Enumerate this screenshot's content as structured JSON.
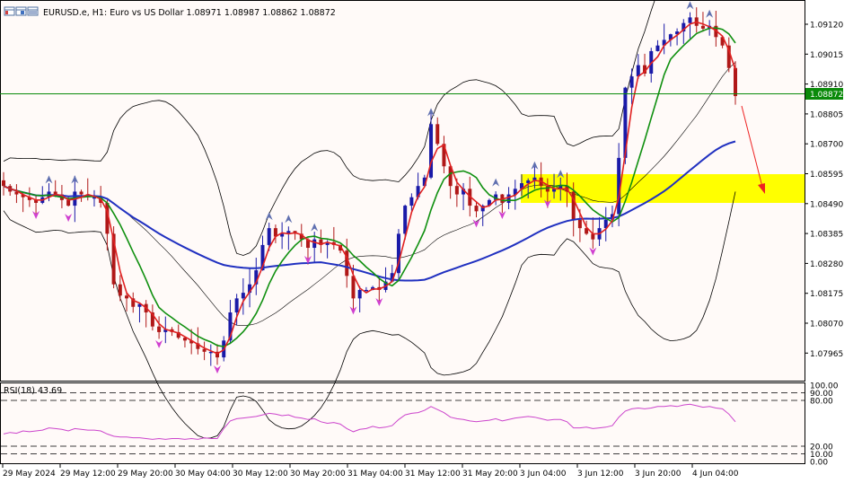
{
  "header": {
    "symbol": "EURUSD.e",
    "timeframe": "H1",
    "description": "Euro vs US Dollar",
    "ohlc": [
      "1.08971",
      "1.08987",
      "1.08862",
      "1.08872"
    ],
    "icons": [
      "window-icon",
      "window-icon",
      "window-icon"
    ]
  },
  "price_axis": {
    "ticks": [
      "1.09120",
      "1.09015",
      "1.08910",
      "1.08805",
      "1.08700",
      "1.08595",
      "1.08490",
      "1.08385",
      "1.08280",
      "1.08175",
      "1.08070",
      "1.07965"
    ],
    "current_price": "1.08872",
    "current_price_color": "#0a8a0a"
  },
  "time_axis": {
    "ticks": [
      "29 May 2024",
      "29 May 12:00",
      "29 May 20:00",
      "30 May 04:00",
      "30 May 12:00",
      "30 May 20:00",
      "31 May 04:00",
      "31 May 12:00",
      "31 May 20:00",
      "3 Jun 04:00",
      "3 Jun 12:00",
      "3 Jun 20:00",
      "4 Jun 04:00"
    ]
  },
  "rsi_panel": {
    "label": "RSI(18) 43.69",
    "levels": [
      "100.00",
      "90.00",
      "80.00",
      "20.00",
      "10.00",
      "0.00"
    ],
    "color": "#cc44cc"
  },
  "annotations": {
    "zone_color": "#ffff00",
    "arrow_color": "#ee2222"
  },
  "colors": {
    "bull_candle": "#1a1aa8",
    "bear_candle": "#b01818",
    "ma_fast": "#e02020",
    "ma_mid": "#109010",
    "ma_slow": "#2030c0",
    "bands": "#000000",
    "fractal_up": "#6070b0",
    "fractal_down": "#d040d0"
  },
  "chart_data": {
    "type": "candlestick",
    "price_range": [
      1.0787,
      1.0918
    ],
    "rsi_range": [
      0,
      100
    ],
    "close": [
      1.0855,
      1.0853,
      1.0852,
      1.0851,
      1.085,
      1.0849,
      1.0851,
      1.0853,
      1.0852,
      1.085,
      1.0848,
      1.0853,
      1.0852,
      1.0851,
      1.0851,
      1.0849,
      1.0838,
      1.082,
      1.0816,
      1.0815,
      1.0812,
      1.0813,
      1.081,
      1.0805,
      1.0803,
      1.0804,
      1.0803,
      1.0801,
      1.08,
      1.0799,
      1.0797,
      1.0796,
      1.0796,
      1.0794,
      1.08,
      1.081,
      1.0815,
      1.0817,
      1.082,
      1.0825,
      1.0834,
      1.084,
      1.0837,
      1.0838,
      1.0839,
      1.0838,
      1.0836,
      1.0833,
      1.0836,
      1.0834,
      1.0835,
      1.0834,
      1.0832,
      1.0823,
      1.0815,
      1.0818,
      1.0818,
      1.0819,
      1.0818,
      1.0821,
      1.0824,
      1.0838,
      1.0848,
      1.0851,
      1.0855,
      1.0858,
      1.0877,
      1.087,
      1.0862,
      1.0855,
      1.0852,
      1.0854,
      1.0848,
      1.0846,
      1.0848,
      1.085,
      1.0852,
      1.0849,
      1.0852,
      1.0854,
      1.0856,
      1.0857,
      1.0858,
      1.0855,
      1.0853,
      1.0854,
      1.0855,
      1.0853,
      1.0843,
      1.084,
      1.0838,
      1.0836,
      1.084,
      1.0843,
      1.0845,
      1.0865,
      1.089,
      1.0894,
      1.0898,
      1.0895,
      1.0903,
      1.0905,
      1.0907,
      1.0909,
      1.091,
      1.0913,
      1.0915,
      1.0912,
      1.0911,
      1.0912,
      1.0908,
      1.0905,
      1.0897,
      1.0887
    ],
    "rsi": [
      36,
      38,
      37,
      40,
      39,
      40,
      41,
      44,
      43,
      42,
      40,
      43,
      42,
      41,
      41,
      40,
      36,
      33,
      32,
      32,
      31,
      31,
      30,
      29,
      30,
      29,
      30,
      30,
      29,
      30,
      29,
      31,
      30,
      30,
      43,
      53,
      56,
      57,
      58,
      59,
      61,
      63,
      62,
      60,
      61,
      58,
      57,
      55,
      56,
      52,
      50,
      51,
      49,
      43,
      39,
      42,
      43,
      46,
      44,
      45,
      47,
      55,
      61,
      63,
      64,
      67,
      72,
      68,
      64,
      58,
      56,
      55,
      53,
      52,
      53,
      54,
      56,
      53,
      55,
      57,
      58,
      59,
      58,
      56,
      54,
      55,
      55,
      52,
      44,
      44,
      45,
      43,
      44,
      45,
      47,
      58,
      66,
      69,
      70,
      69,
      70,
      72,
      72,
      73,
      72,
      74,
      75,
      73,
      71,
      72,
      70,
      69,
      62,
      52
    ]
  }
}
